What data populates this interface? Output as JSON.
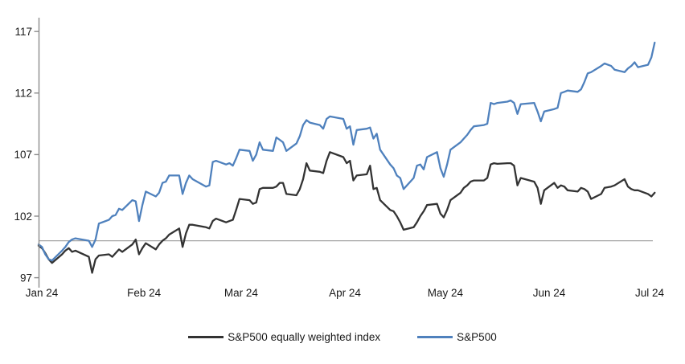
{
  "chart_data": {
    "type": "line",
    "title": "",
    "xlabel": "",
    "ylabel": "",
    "y_ticks": [
      117,
      112,
      107,
      102,
      97
    ],
    "y_range": [
      97,
      117
    ],
    "x_labels": [
      "Jan 24",
      "Feb 24",
      "Mar 24",
      "Apr 24",
      "May 24",
      "Jun 24",
      "Jul 24"
    ],
    "baseline_value": 100,
    "grid": "off",
    "legend_position": "bottom-center",
    "axis_color": "#8c8c8c",
    "baseline_color": "#a6a6a6",
    "text_color": "#1a1a1a",
    "dates": [
      "2024-01-01",
      "2024-01-02",
      "2024-01-03",
      "2024-01-04",
      "2024-01-05",
      "2024-01-08",
      "2024-01-09",
      "2024-01-10",
      "2024-01-11",
      "2024-01-12",
      "2024-01-16",
      "2024-01-17",
      "2024-01-18",
      "2024-01-19",
      "2024-01-22",
      "2024-01-23",
      "2024-01-24",
      "2024-01-25",
      "2024-01-26",
      "2024-01-29",
      "2024-01-30",
      "2024-01-31",
      "2024-02-01",
      "2024-02-02",
      "2024-02-05",
      "2024-02-06",
      "2024-02-07",
      "2024-02-08",
      "2024-02-09",
      "2024-02-12",
      "2024-02-13",
      "2024-02-14",
      "2024-02-15",
      "2024-02-16",
      "2024-02-20",
      "2024-02-21",
      "2024-02-22",
      "2024-02-23",
      "2024-02-26",
      "2024-02-27",
      "2024-02-28",
      "2024-02-29",
      "2024-03-01",
      "2024-03-04",
      "2024-03-05",
      "2024-03-06",
      "2024-03-07",
      "2024-03-08",
      "2024-03-11",
      "2024-03-12",
      "2024-03-13",
      "2024-03-14",
      "2024-03-15",
      "2024-03-18",
      "2024-03-19",
      "2024-03-20",
      "2024-03-21",
      "2024-03-22",
      "2024-03-25",
      "2024-03-26",
      "2024-03-27",
      "2024-03-28",
      "2024-04-01",
      "2024-04-02",
      "2024-04-03",
      "2024-04-04",
      "2024-04-05",
      "2024-04-08",
      "2024-04-09",
      "2024-04-10",
      "2024-04-11",
      "2024-04-12",
      "2024-04-15",
      "2024-04-16",
      "2024-04-17",
      "2024-04-18",
      "2024-04-19",
      "2024-04-22",
      "2024-04-23",
      "2024-04-24",
      "2024-04-25",
      "2024-04-26",
      "2024-04-29",
      "2024-04-30",
      "2024-05-01",
      "2024-05-02",
      "2024-05-03",
      "2024-05-06",
      "2024-05-07",
      "2024-05-08",
      "2024-05-09",
      "2024-05-10",
      "2024-05-13",
      "2024-05-14",
      "2024-05-15",
      "2024-05-16",
      "2024-05-17",
      "2024-05-20",
      "2024-05-21",
      "2024-05-22",
      "2024-05-23",
      "2024-05-24",
      "2024-05-28",
      "2024-05-29",
      "2024-05-30",
      "2024-05-31",
      "2024-06-03",
      "2024-06-04",
      "2024-06-05",
      "2024-06-06",
      "2024-06-07",
      "2024-06-10",
      "2024-06-11",
      "2024-06-12",
      "2024-06-13",
      "2024-06-14",
      "2024-06-17",
      "2024-06-18",
      "2024-06-20",
      "2024-06-21",
      "2024-06-24",
      "2024-06-25",
      "2024-06-26",
      "2024-06-27",
      "2024-06-28",
      "2024-07-01",
      "2024-07-02",
      "2024-07-03"
    ],
    "series": [
      {
        "name": "S&P500 equally weighted index",
        "color": "#333333",
        "values": [
          99.6,
          99.4,
          99.0,
          98.5,
          98.2,
          98.9,
          99.2,
          99.4,
          99.1,
          99.2,
          98.7,
          97.4,
          98.5,
          98.8,
          98.9,
          98.7,
          99.0,
          99.3,
          99.1,
          99.7,
          100.1,
          98.9,
          99.4,
          99.8,
          99.3,
          99.7,
          100.0,
          100.2,
          100.5,
          101.0,
          99.5,
          100.6,
          101.3,
          101.3,
          101.1,
          101.0,
          101.6,
          101.8,
          101.5,
          101.6,
          101.7,
          102.5,
          103.4,
          103.3,
          103.0,
          103.1,
          104.2,
          104.3,
          104.3,
          104.4,
          104.7,
          104.7,
          103.8,
          103.7,
          104.2,
          105.0,
          106.3,
          105.7,
          105.6,
          105.5,
          106.5,
          107.2,
          106.8,
          106.3,
          106.5,
          104.9,
          105.3,
          105.4,
          106.1,
          104.2,
          104.3,
          103.3,
          102.5,
          102.4,
          102.0,
          101.5,
          100.9,
          101.1,
          101.5,
          102.0,
          102.4,
          102.9,
          103.0,
          102.2,
          101.9,
          102.5,
          103.3,
          103.9,
          104.3,
          104.5,
          104.8,
          104.9,
          104.9,
          105.1,
          106.2,
          106.3,
          106.25,
          106.3,
          106.3,
          106.1,
          104.5,
          105.1,
          104.8,
          104.3,
          103.0,
          104.1,
          104.7,
          104.3,
          104.5,
          104.4,
          104.1,
          104.0,
          104.3,
          104.2,
          104.0,
          103.4,
          103.8,
          104.3,
          104.4,
          104.5,
          105.0,
          104.4,
          104.2,
          104.1,
          104.1,
          103.8,
          103.6,
          103.9
        ]
      },
      {
        "name": "S&P500",
        "color": "#4f81bd",
        "values": [
          99.7,
          99.5,
          98.9,
          98.5,
          98.4,
          99.2,
          99.5,
          99.9,
          100.1,
          100.2,
          100.0,
          99.5,
          100.1,
          101.4,
          101.7,
          102.0,
          102.1,
          102.6,
          102.5,
          103.3,
          103.2,
          101.6,
          102.9,
          104.0,
          103.6,
          103.9,
          104.7,
          104.8,
          105.3,
          105.3,
          103.8,
          104.7,
          105.3,
          105.0,
          104.4,
          104.5,
          106.4,
          106.5,
          106.2,
          106.3,
          106.1,
          106.7,
          107.4,
          107.3,
          106.5,
          107.0,
          108.0,
          107.4,
          107.3,
          108.4,
          108.2,
          108.0,
          107.3,
          107.9,
          108.5,
          109.4,
          109.8,
          109.6,
          109.4,
          109.1,
          109.9,
          110.1,
          109.9,
          109.1,
          109.3,
          107.8,
          109.0,
          109.1,
          109.2,
          108.3,
          108.7,
          107.4,
          106.2,
          105.9,
          105.3,
          105.1,
          104.2,
          105.1,
          106.1,
          106.2,
          105.8,
          106.8,
          107.2,
          105.9,
          105.2,
          106.2,
          107.4,
          108.0,
          108.3,
          108.6,
          109.0,
          109.3,
          109.4,
          109.5,
          111.2,
          111.1,
          111.2,
          111.3,
          111.4,
          111.2,
          110.3,
          111.1,
          111.2,
          110.5,
          109.7,
          110.5,
          110.7,
          110.8,
          112.0,
          112.1,
          112.2,
          112.1,
          112.3,
          112.9,
          113.6,
          113.7,
          114.2,
          114.4,
          114.2,
          113.9,
          113.7,
          114.0,
          114.2,
          114.5,
          114.1,
          114.3,
          114.9,
          116.1
        ]
      }
    ]
  }
}
